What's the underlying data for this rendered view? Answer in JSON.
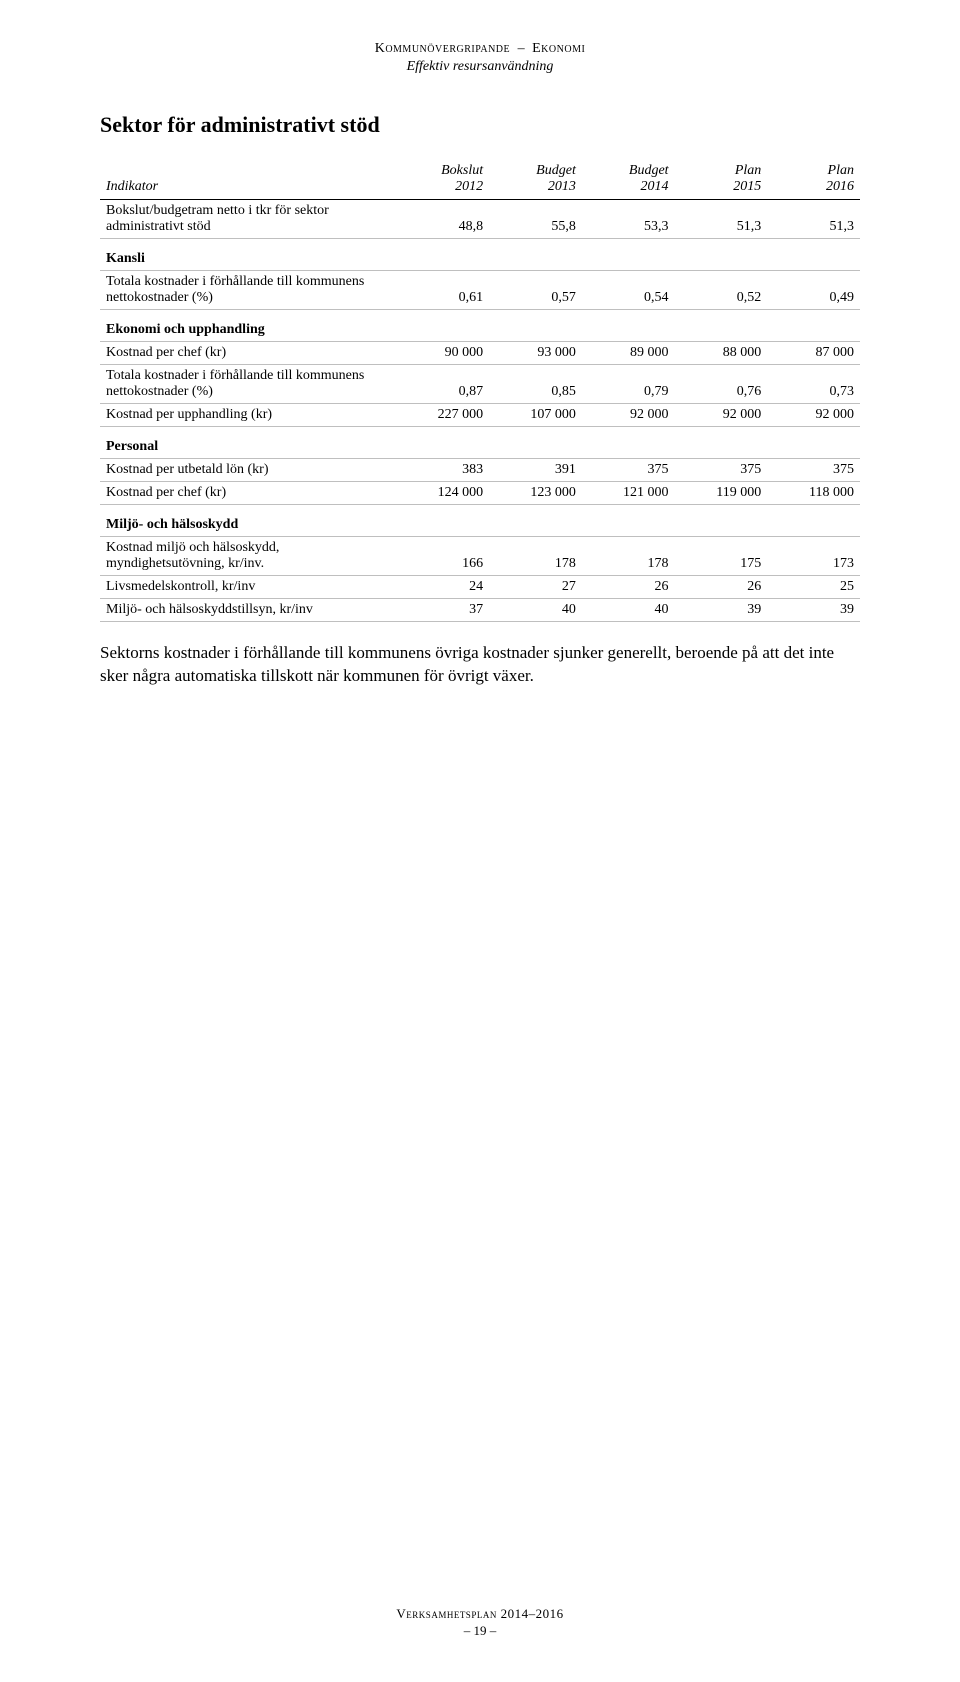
{
  "header": {
    "line1_left": "Kommunövergripande",
    "line1_right": "Ekonomi",
    "line2": "Effektiv resursanvändning"
  },
  "section_title": "Sektor för administrativt stöd",
  "table": {
    "columns": [
      {
        "head1": "Indikator",
        "head2": ""
      },
      {
        "head1": "Bokslut",
        "head2": "2012"
      },
      {
        "head1": "Budget",
        "head2": "2013"
      },
      {
        "head1": "Budget",
        "head2": "2014"
      },
      {
        "head1": "Plan",
        "head2": "2015"
      },
      {
        "head1": "Plan",
        "head2": "2016"
      }
    ],
    "rows": [
      {
        "type": "data",
        "label": "Bokslut/budgetram netto i tkr för sektor administrativt stöd",
        "v": [
          "48,8",
          "55,8",
          "53,3",
          "51,3",
          "51,3"
        ]
      },
      {
        "type": "group",
        "label": "Kansli"
      },
      {
        "type": "data",
        "label": "Totala kostnader i förhållande till kommunens nettokostnader (%)",
        "v": [
          "0,61",
          "0,57",
          "0,54",
          "0,52",
          "0,49"
        ]
      },
      {
        "type": "group",
        "label": "Ekonomi och upphandling"
      },
      {
        "type": "data",
        "label": "Kostnad per chef (kr)",
        "v": [
          "90 000",
          "93 000",
          "89 000",
          "88 000",
          "87 000"
        ]
      },
      {
        "type": "data",
        "label": "Totala kostnader i förhållande till kommunens nettokostnader (%)",
        "v": [
          "0,87",
          "0,85",
          "0,79",
          "0,76",
          "0,73"
        ]
      },
      {
        "type": "data",
        "label": "Kostnad per upphandling (kr)",
        "v": [
          "227 000",
          "107 000",
          "92 000",
          "92 000",
          "92 000"
        ]
      },
      {
        "type": "group",
        "label": "Personal"
      },
      {
        "type": "data",
        "label": "Kostnad per utbetald lön (kr)",
        "v": [
          "383",
          "391",
          "375",
          "375",
          "375"
        ]
      },
      {
        "type": "data",
        "label": "Kostnad per chef (kr)",
        "v": [
          "124 000",
          "123 000",
          "121 000",
          "119 000",
          "118 000"
        ]
      },
      {
        "type": "group",
        "label": "Miljö- och hälsoskydd"
      },
      {
        "type": "data",
        "label": "Kostnad miljö och hälsoskydd, myndighetsutövning, kr/inv.",
        "v": [
          "166",
          "178",
          "178",
          "175",
          "173"
        ]
      },
      {
        "type": "data",
        "label": "Livsmedelskontroll, kr/inv",
        "v": [
          "24",
          "27",
          "26",
          "26",
          "25"
        ]
      },
      {
        "type": "data",
        "label": "Miljö- och hälsoskyddstillsyn, kr/inv",
        "v": [
          "37",
          "40",
          "40",
          "39",
          "39"
        ]
      }
    ]
  },
  "body_text": "Sektorns kostnader i förhållande till kommunens övriga kostnader sjunker generellt, beroende på att det inte sker några automatiska tillskott när kommunen för övrigt växer.",
  "footer": {
    "plan": "Verksamhetsplan 2014–2016",
    "page": "– 19 –"
  }
}
